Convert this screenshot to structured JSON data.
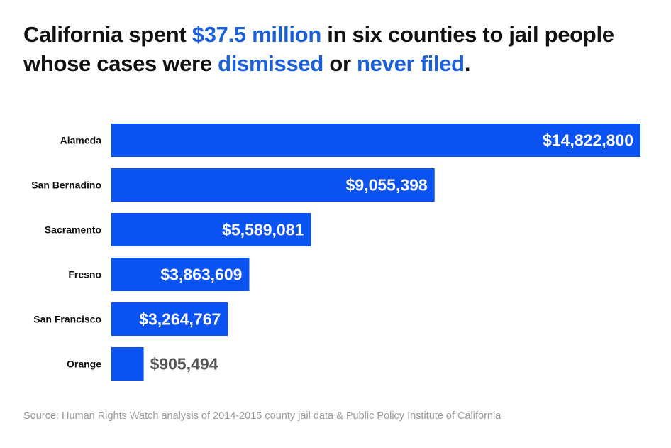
{
  "title": {
    "parts": [
      {
        "text": "California spent ",
        "highlight": false
      },
      {
        "text": "$37.5 million",
        "highlight": true
      },
      {
        "text": " in six counties to jail people whose cases were ",
        "highlight": false
      },
      {
        "text": "dismissed",
        "highlight": true
      },
      {
        "text": " or ",
        "highlight": false
      },
      {
        "text": "never filed",
        "highlight": true
      },
      {
        "text": ".",
        "highlight": false
      }
    ]
  },
  "source": "Source: Human Rights Watch analysis of 2014-2015 county jail data & Public Policy Institute of California",
  "colors": {
    "bar": "#0a52f2",
    "highlight": "#1a5fdc",
    "label_inside": "#ffffff",
    "label_outside": "#555555"
  },
  "chart_data": {
    "type": "bar",
    "orientation": "horizontal",
    "categories": [
      "Alameda",
      "San Bernadino",
      "Sacramento",
      "Fresno",
      "San Francisco",
      "Orange"
    ],
    "values": [
      14822800,
      9055398,
      5589081,
      3863609,
      3264767,
      905494
    ],
    "data_labels": [
      "$14,822,800",
      "$9,055,398",
      "$5,589,081",
      "$3,863,609",
      "$3,264,767",
      "$905,494"
    ],
    "xlim": [
      0,
      14822800
    ],
    "grid": false,
    "axis_shown": false
  }
}
